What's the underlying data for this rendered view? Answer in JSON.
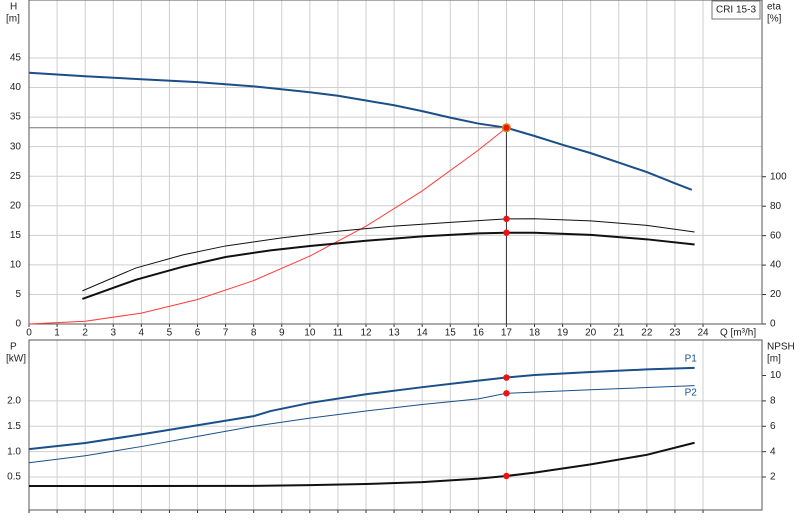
{
  "chart_data": [
    {
      "type": "line",
      "title": "CRI 15-3",
      "ylabel": "H",
      "yunit": "[m]",
      "y2label": "eta",
      "y2unit": "[%]",
      "xlabel": "Q [m³/h]",
      "xlim": [
        0,
        26.1
      ],
      "xticks": [
        0,
        1,
        2,
        3,
        4,
        5,
        6,
        7,
        8,
        9,
        10,
        11,
        12,
        13,
        14,
        15,
        16,
        17,
        18,
        19,
        20,
        21,
        22,
        23,
        24
      ],
      "ylim": [
        0,
        54.8
      ],
      "yticks": [
        0,
        5,
        10,
        15,
        20,
        25,
        30,
        35,
        40,
        45
      ],
      "y2lim": [
        0,
        220
      ],
      "y2ticks": [
        0,
        20,
        40,
        60,
        80,
        100
      ],
      "grid": true,
      "duty_x": 17,
      "series": [
        {
          "color": "#1a4f8a",
          "width": 2,
          "duty_point": true,
          "x": [
            0,
            2,
            4,
            6,
            8,
            10,
            11,
            12,
            13,
            14,
            15,
            16,
            17,
            18,
            19,
            20,
            21,
            22,
            23,
            23.6
          ],
          "values": [
            42.5,
            41.9,
            41.4,
            40.9,
            40.2,
            39.2,
            38.6,
            37.8,
            37.0,
            36.0,
            34.9,
            33.9,
            33.2,
            31.8,
            30.3,
            28.9,
            27.3,
            25.7,
            23.8,
            22.7
          ]
        },
        {
          "color": "#ff3b3b",
          "width": 1,
          "x": [
            0,
            2,
            4,
            6,
            8,
            10,
            12,
            14,
            16,
            17
          ],
          "values": [
            0,
            0.46,
            1.84,
            4.14,
            7.35,
            11.49,
            16.54,
            22.51,
            29.41,
            33.2
          ]
        },
        {
          "color": "#111111",
          "width": 1,
          "axis": "y2",
          "x": [
            1.9,
            3.8,
            5.5,
            7,
            9,
            11,
            13,
            15,
            17,
            18,
            20,
            22,
            23.7
          ],
          "values": [
            22.5,
            38,
            47,
            53,
            58.5,
            63,
            66.5,
            69,
            71.4,
            71.5,
            70,
            67,
            62.5
          ]
        },
        {
          "color": "#111111",
          "width": 2,
          "axis": "y2",
          "x": [
            1.9,
            3.8,
            5.5,
            7,
            8.6,
            10,
            12,
            14,
            16,
            17,
            18,
            20,
            22,
            23.7
          ],
          "values": [
            17,
            30,
            39,
            45.5,
            50,
            53,
            56.5,
            59.5,
            61.5,
            62,
            62,
            60.5,
            57.5,
            54
          ]
        }
      ]
    },
    {
      "type": "line",
      "ylabel": "P",
      "yunit": "[kW]",
      "y2label": "NPSH",
      "y2unit": "[m]",
      "ylim": [
        -0.15,
        3.2
      ],
      "yticks": [
        0.5,
        {
          "value": 1.0,
          "label": "1.0"
        },
        1.5,
        {
          "value": 2.0,
          "label": "2.0"
        }
      ],
      "y2lim": [
        -0.6,
        12.8
      ],
      "y2ticks": [
        2,
        4,
        6,
        8,
        10
      ],
      "grid": true,
      "duty_x": 17,
      "series": [
        {
          "name": "P1",
          "color": "#1a4f8a",
          "width": 2,
          "x": [
            0,
            2,
            4,
            6,
            8,
            8.6,
            10,
            12,
            14,
            16,
            17,
            18,
            20,
            22,
            23.7
          ],
          "values": [
            1.05,
            1.17,
            1.34,
            1.52,
            1.7,
            1.8,
            1.96,
            2.13,
            2.27,
            2.4,
            2.46,
            2.51,
            2.57,
            2.62,
            2.65
          ]
        },
        {
          "name": "P2",
          "color": "#1a4f8a",
          "width": 1,
          "x": [
            0,
            2,
            4,
            6,
            8,
            10,
            12,
            14,
            16,
            17,
            20,
            23.7
          ],
          "values": [
            0.78,
            0.92,
            1.1,
            1.3,
            1.5,
            1.66,
            1.8,
            1.93,
            2.04,
            2.15,
            2.22,
            2.3
          ]
        },
        {
          "color": "#111111",
          "width": 2,
          "axis": "y2",
          "x": [
            0,
            4,
            8,
            10,
            12,
            14,
            16,
            17,
            18,
            20,
            22,
            23.7
          ],
          "values": [
            1.29,
            1.29,
            1.3,
            1.36,
            1.45,
            1.6,
            1.87,
            2.08,
            2.35,
            3.0,
            3.75,
            4.7
          ]
        }
      ]
    }
  ]
}
